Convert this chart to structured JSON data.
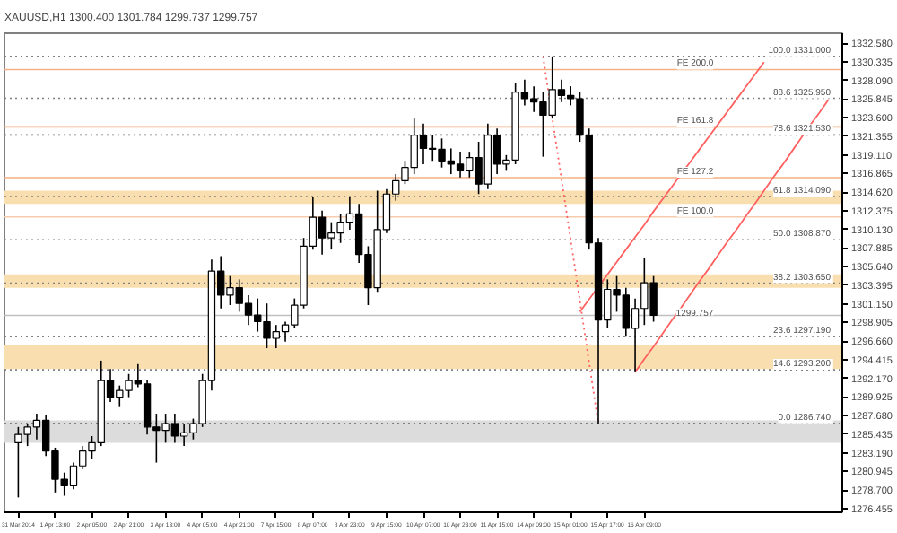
{
  "chart_data": {
    "type": "candlestick",
    "title": "XAUUSD,H1  1300.400 1301.784 1299.737 1299.757",
    "categories": [
      "31 Mar 2014",
      null,
      null,
      null,
      "1 Apr 13:00",
      null,
      null,
      null,
      "2 Apr 05:00",
      null,
      null,
      null,
      "2 Apr 21:00",
      null,
      null,
      null,
      "3 Apr 13:00",
      null,
      null,
      null,
      "4 Apr 05:00",
      null,
      null,
      null,
      "4 Apr 21:00",
      null,
      null,
      null,
      "7 Apr 15:00",
      null,
      null,
      null,
      "8 Apr 07:00",
      null,
      null,
      null,
      "8 Apr 23:00",
      null,
      null,
      null,
      "9 Apr 15:00",
      null,
      null,
      null,
      "10 Apr 07:00",
      null,
      null,
      null,
      "10 Apr 23:00",
      null,
      null,
      null,
      "11 Apr 15:00",
      null,
      null,
      null,
      "14 Apr 09:00",
      null,
      null,
      null,
      "15 Apr 01:00",
      null,
      null,
      null,
      "15 Apr 17:00",
      null,
      null,
      null,
      "16 Apr 09:00",
      null,
      null,
      null,
      null,
      null,
      null,
      null,
      null,
      null,
      null,
      null,
      null,
      null,
      null,
      null,
      null,
      null,
      null,
      null,
      null
    ],
    "ohlc": [
      [
        1284.4,
        1286.3,
        1277.8,
        1285.4
      ],
      [
        1285.4,
        1286.7,
        1284.0,
        1286.3
      ],
      [
        1286.3,
        1287.9,
        1284.8,
        1287.1
      ],
      [
        1287.1,
        1287.7,
        1282.8,
        1283.4
      ],
      [
        1283.4,
        1283.8,
        1278.4,
        1280.0
      ],
      [
        1280.0,
        1280.8,
        1278.0,
        1279.2
      ],
      [
        1279.2,
        1282.0,
        1278.8,
        1281.6
      ],
      [
        1281.6,
        1284.0,
        1281.2,
        1283.4
      ],
      [
        1283.4,
        1285.2,
        1282.4,
        1284.4
      ],
      [
        1284.4,
        1294.3,
        1284.0,
        1291.9
      ],
      [
        1291.9,
        1293.3,
        1289.3,
        1289.9
      ],
      [
        1289.9,
        1291.3,
        1288.7,
        1290.7
      ],
      [
        1290.7,
        1292.7,
        1289.9,
        1291.9
      ],
      [
        1291.9,
        1293.9,
        1291.1,
        1291.5
      ],
      [
        1291.5,
        1291.9,
        1285.4,
        1286.3
      ],
      [
        1286.3,
        1287.9,
        1282.0,
        1285.9
      ],
      [
        1285.9,
        1287.9,
        1284.4,
        1286.7
      ],
      [
        1286.7,
        1287.9,
        1284.4,
        1285.2
      ],
      [
        1285.2,
        1286.7,
        1284.0,
        1285.6
      ],
      [
        1285.6,
        1287.3,
        1284.8,
        1286.7
      ],
      [
        1286.7,
        1292.7,
        1286.3,
        1291.9
      ],
      [
        1291.9,
        1306.5,
        1290.7,
        1305.1
      ],
      [
        1305.1,
        1306.9,
        1300.6,
        1302.2
      ],
      [
        1302.2,
        1304.5,
        1301.0,
        1303.1
      ],
      [
        1303.1,
        1304.1,
        1300.2,
        1301.2
      ],
      [
        1301.2,
        1302.2,
        1298.6,
        1299.8
      ],
      [
        1299.8,
        1301.8,
        1297.8,
        1299.0
      ],
      [
        1299.0,
        1301.2,
        1295.8,
        1297.0
      ],
      [
        1297.0,
        1298.6,
        1295.8,
        1297.8
      ],
      [
        1297.8,
        1299.0,
        1296.6,
        1298.6
      ],
      [
        1298.6,
        1301.8,
        1298.2,
        1301.0
      ],
      [
        1301.0,
        1309.1,
        1300.6,
        1308.1
      ],
      [
        1308.1,
        1314.0,
        1307.7,
        1311.6
      ],
      [
        1311.6,
        1312.4,
        1307.1,
        1309.1
      ],
      [
        1309.1,
        1311.0,
        1307.7,
        1309.7
      ],
      [
        1309.7,
        1312.0,
        1308.5,
        1311.0
      ],
      [
        1311.0,
        1314.0,
        1310.1,
        1312.0
      ],
      [
        1312.0,
        1313.2,
        1306.1,
        1307.1
      ],
      [
        1307.1,
        1308.1,
        1301.0,
        1303.1
      ],
      [
        1303.1,
        1314.8,
        1302.6,
        1310.1
      ],
      [
        1310.1,
        1315.0,
        1309.7,
        1314.4
      ],
      [
        1314.4,
        1316.8,
        1313.6,
        1316.0
      ],
      [
        1316.0,
        1318.4,
        1315.6,
        1317.6
      ],
      [
        1317.6,
        1323.5,
        1316.8,
        1321.5
      ],
      [
        1321.5,
        1322.9,
        1318.0,
        1319.9
      ],
      [
        1319.9,
        1321.5,
        1318.4,
        1319.8
      ],
      [
        1319.8,
        1321.1,
        1317.6,
        1318.4
      ],
      [
        1318.4,
        1319.9,
        1316.8,
        1318.0
      ],
      [
        1318.0,
        1319.5,
        1316.4,
        1317.2
      ],
      [
        1317.2,
        1319.5,
        1316.4,
        1318.8
      ],
      [
        1318.8,
        1320.7,
        1314.4,
        1315.6
      ],
      [
        1315.6,
        1322.9,
        1315.0,
        1321.5
      ],
      [
        1321.5,
        1322.3,
        1316.8,
        1318.0
      ],
      [
        1318.0,
        1319.1,
        1317.2,
        1318.5
      ],
      [
        1318.5,
        1327.8,
        1318.0,
        1326.7
      ],
      [
        1326.7,
        1328.2,
        1325.1,
        1325.9
      ],
      [
        1325.9,
        1327.4,
        1324.3,
        1325.5
      ],
      [
        1325.5,
        1326.7,
        1318.9,
        1323.9
      ],
      [
        1323.9,
        1331.0,
        1323.5,
        1327.0
      ],
      [
        1327.0,
        1328.2,
        1325.5,
        1326.3
      ],
      [
        1326.3,
        1327.4,
        1325.1,
        1325.9
      ],
      [
        1325.9,
        1326.7,
        1320.7,
        1321.5
      ],
      [
        1321.5,
        1322.3,
        1307.7,
        1308.5
      ],
      [
        1308.5,
        1309.1,
        1286.7,
        1299.2
      ],
      [
        1299.2,
        1304.1,
        1298.2,
        1302.9
      ],
      [
        1302.9,
        1304.5,
        1300.2,
        1302.2
      ],
      [
        1302.2,
        1303.1,
        1297.2,
        1298.2
      ],
      [
        1298.2,
        1301.8,
        1292.9,
        1300.6
      ],
      [
        1300.6,
        1306.7,
        1298.6,
        1303.7
      ],
      [
        1303.7,
        1304.5,
        1299.0,
        1299.757
      ],
      null,
      null,
      null,
      null,
      null,
      null,
      null,
      null,
      null,
      null,
      null,
      null,
      null,
      null,
      null,
      null,
      null,
      null,
      null
    ],
    "colors": [
      "#ffffff",
      "#ffffff",
      "#ffffff",
      "#000000",
      "#000000",
      "#000000",
      "#ffffff",
      "#ffffff",
      "#ffffff",
      "#ffffff",
      "#000000",
      "#ffffff",
      "#ffffff",
      "#000000",
      "#000000",
      "#000000",
      "#ffffff",
      "#000000",
      "#ffffff",
      "#ffffff",
      "#ffffff",
      "#ffffff",
      "#000000",
      "#ffffff",
      "#000000",
      "#000000",
      "#000000",
      "#000000",
      "#ffffff",
      "#ffffff",
      "#ffffff",
      "#ffffff",
      "#ffffff",
      "#000000",
      "#ffffff",
      "#ffffff",
      "#ffffff",
      "#000000",
      "#000000",
      "#ffffff",
      "#ffffff",
      "#ffffff",
      "#ffffff",
      "#ffffff",
      "#000000",
      "#000000",
      "#000000",
      "#000000",
      "#000000",
      "#ffffff",
      "#000000",
      "#ffffff",
      "#000000",
      "#ffffff",
      "#ffffff",
      "#000000",
      "#000000",
      "#000000",
      "#ffffff",
      "#000000",
      "#000000",
      "#000000",
      "#000000",
      "#000000",
      "#ffffff",
      "#000000",
      "#000000",
      "#ffffff",
      "#ffffff",
      "#000000",
      null,
      null,
      null,
      null,
      null,
      null,
      null,
      null,
      null,
      null,
      null,
      null,
      null,
      null,
      null,
      null,
      null,
      null,
      null
    ],
    "series": [
      {
        "type": "line",
        "color": "#ff6060",
        "line_style": "solid",
        "values": [
          null,
          null,
          null,
          null,
          null,
          null,
          null,
          null,
          null,
          null,
          null,
          null,
          null,
          null,
          null,
          null,
          null,
          null,
          null,
          null,
          null,
          null,
          null,
          null,
          null,
          null,
          null,
          null,
          null,
          null,
          null,
          null,
          null,
          null,
          null,
          null,
          null,
          null,
          null,
          null,
          null,
          null,
          null,
          null,
          null,
          null,
          null,
          null,
          null,
          null,
          null,
          null,
          null,
          null,
          null,
          null,
          null,
          null,
          null,
          null,
          null,
          1300.2,
          1301.7,
          1303.2,
          1304.7,
          1306.2,
          1307.7,
          1309.2,
          1310.7,
          1312.3,
          1313.8,
          1315.3,
          1316.8,
          1318.3,
          1319.8,
          1321.3,
          1322.8,
          1324.3,
          1325.8,
          1327.3,
          1328.8,
          1330.3,
          null,
          null,
          null,
          null,
          null,
          null,
          null
        ]
      },
      {
        "type": "line",
        "color": "#ff6060",
        "line_style": "solid",
        "values": [
          null,
          null,
          null,
          null,
          null,
          null,
          null,
          null,
          null,
          null,
          null,
          null,
          null,
          null,
          null,
          null,
          null,
          null,
          null,
          null,
          null,
          null,
          null,
          null,
          null,
          null,
          null,
          null,
          null,
          null,
          null,
          null,
          null,
          null,
          null,
          null,
          null,
          null,
          null,
          null,
          null,
          null,
          null,
          null,
          null,
          null,
          null,
          null,
          null,
          null,
          null,
          null,
          null,
          null,
          null,
          null,
          null,
          null,
          null,
          null,
          null,
          null,
          null,
          null,
          null,
          null,
          null,
          1292.9,
          1294.5,
          1296.0,
          1297.6,
          1299.2,
          1300.7,
          1302.3,
          1303.9,
          1305.4,
          1307.0,
          1308.6,
          1310.1,
          1311.7,
          1313.2,
          1314.8,
          1316.4,
          1317.9,
          1319.5,
          1321.1,
          1322.7,
          1324.2,
          1325.8
        ]
      },
      {
        "type": "line",
        "color": "#ff6060",
        "line_style": "dotted",
        "values": [
          null,
          null,
          null,
          null,
          null,
          null,
          null,
          null,
          null,
          null,
          null,
          null,
          null,
          null,
          null,
          null,
          null,
          null,
          null,
          null,
          null,
          null,
          null,
          null,
          null,
          null,
          null,
          null,
          null,
          null,
          null,
          null,
          null,
          null,
          null,
          null,
          null,
          null,
          null,
          null,
          null,
          null,
          null,
          null,
          null,
          null,
          null,
          null,
          null,
          null,
          null,
          null,
          null,
          null,
          null,
          null,
          null,
          1331.0,
          1323.6,
          1316.2,
          1308.9,
          1301.5,
          1294.1,
          1286.7,
          null,
          null,
          null,
          null,
          null,
          null,
          null,
          null,
          null,
          null,
          null,
          null,
          null,
          null,
          null,
          null,
          null,
          null,
          null,
          null,
          null,
          null,
          null,
          null,
          null
        ]
      }
    ],
    "ylim": [
      1276.0,
      1333.8
    ],
    "yticks": [
      {
        "value": 1276.455,
        "label": "1276.455"
      },
      {
        "value": 1278.7,
        "label": "1278.700"
      },
      {
        "value": 1280.945,
        "label": "1280.945"
      },
      {
        "value": 1283.19,
        "label": "1283.190"
      },
      {
        "value": 1285.435,
        "label": "1285.435"
      },
      {
        "value": 1287.68,
        "label": "1287.680"
      },
      {
        "value": 1289.925,
        "label": "1289.925"
      },
      {
        "value": 1292.17,
        "label": "1292.170"
      },
      {
        "value": 1294.415,
        "label": "1294.415"
      },
      {
        "value": 1296.66,
        "label": "1296.660"
      },
      {
        "value": 1298.905,
        "label": "1298.905"
      },
      {
        "value": 1301.15,
        "label": "1301.150"
      },
      {
        "value": 1303.395,
        "label": "1303.395"
      },
      {
        "value": 1305.64,
        "label": "1305.640"
      },
      {
        "value": 1307.885,
        "label": "1307.885"
      },
      {
        "value": 1310.13,
        "label": "1310.130"
      },
      {
        "value": 1312.375,
        "label": "1312.375"
      },
      {
        "value": 1314.62,
        "label": "1314.620"
      },
      {
        "value": 1316.865,
        "label": "1316.865"
      },
      {
        "value": 1319.11,
        "label": "1319.110"
      },
      {
        "value": 1321.355,
        "label": "1321.355"
      },
      {
        "value": 1323.6,
        "label": "1323.600"
      },
      {
        "value": 1325.845,
        "label": "1325.845"
      },
      {
        "value": 1328.09,
        "label": "1328.090"
      },
      {
        "value": 1330.335,
        "label": "1330.335"
      },
      {
        "value": 1332.58,
        "label": "1332.580"
      }
    ],
    "bands": [
      {
        "axis": "y",
        "from": 1313.2,
        "to": 1314.8,
        "color": "#f9dfb0"
      },
      {
        "axis": "y",
        "from": 1303.1,
        "to": 1304.7,
        "color": "#f9dfb0"
      },
      {
        "axis": "y",
        "from": 1293.3,
        "to": 1296.2,
        "color": "#f9dfb0"
      },
      {
        "axis": "y",
        "from": 1284.4,
        "to": 1287.1,
        "color": "#dcdcdc"
      }
    ],
    "ref_lines": [
      {
        "axis": "y",
        "value": 1331.0,
        "label": "100.0  1331.000",
        "color": "#808080",
        "line_style": "dotted"
      },
      {
        "axis": "y",
        "value": 1325.95,
        "label": "88.6  1325.950",
        "color": "#808080",
        "line_style": "dotted"
      },
      {
        "axis": "y",
        "value": 1321.53,
        "label": "78.6  1321.530",
        "color": "#808080",
        "line_style": "dotted"
      },
      {
        "axis": "y",
        "value": 1314.09,
        "label": "61.8  1314.090",
        "color": "#808080",
        "line_style": "dotted"
      },
      {
        "axis": "y",
        "value": 1308.87,
        "label": "50.0  1308.870",
        "color": "#808080",
        "line_style": "dotted"
      },
      {
        "axis": "y",
        "value": 1303.65,
        "label": "38.2  1303.650",
        "color": "#808080",
        "line_style": "dotted"
      },
      {
        "axis": "y",
        "value": 1297.19,
        "label": "23.6  1297.190",
        "color": "#808080",
        "line_style": "dotted"
      },
      {
        "axis": "y",
        "value": 1293.2,
        "label": "14.6  1293.200",
        "color": "#808080",
        "line_style": "dotted"
      },
      {
        "axis": "y",
        "value": 1286.74,
        "label": "0.0  1286.740",
        "color": "#808080",
        "line_style": "dotted"
      },
      {
        "axis": "y",
        "value": 1329.42,
        "label": "FE 200.0",
        "color": "#f4b183",
        "line_style": "solid"
      },
      {
        "axis": "y",
        "value": 1322.5,
        "label": "FE 161.8",
        "color": "#f4b183",
        "line_style": "solid"
      },
      {
        "axis": "y",
        "value": 1316.38,
        "label": "FE 127.2",
        "color": "#f4b183",
        "line_style": "solid"
      },
      {
        "axis": "y",
        "value": 1311.63,
        "label": "FE 100.0",
        "color": "#f8cbad",
        "line_style": "solid"
      },
      {
        "axis": "y",
        "value": 1299.757,
        "label": "1299.757",
        "color": "#c0c0c0",
        "line_style": "solid"
      }
    ],
    "grid": false
  }
}
